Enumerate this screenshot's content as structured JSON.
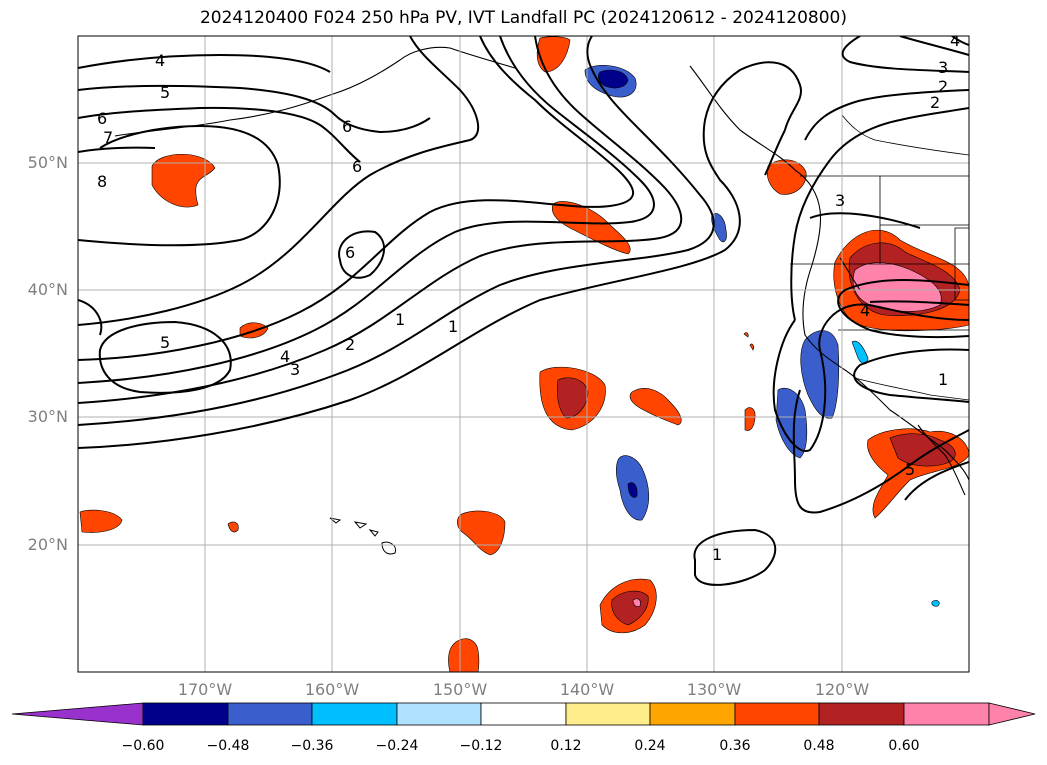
{
  "title": "2024120400 F024 250 hPa PV, IVT Landfall PC (2024120612 - 2024120800)",
  "map": {
    "projection": "lat-lon",
    "lon_range": [
      -180,
      -110
    ],
    "lat_range": [
      10,
      60
    ],
    "lat_ticks": [
      "50°N",
      "40°N",
      "30°N",
      "20°N"
    ],
    "lon_ticks": [
      "170°W",
      "160°W",
      "150°W",
      "140°W",
      "130°W",
      "120°W"
    ],
    "grid": true,
    "contour_variable": "250 hPa PV",
    "contour_labels": [
      "4",
      "5",
      "6",
      "7",
      "8",
      "6",
      "6",
      "6",
      "5",
      "4",
      "3",
      "2",
      "1",
      "1",
      "1",
      "3",
      "4",
      "1",
      "5",
      "4",
      "3",
      "2"
    ],
    "shaded_variable": "IVT Landfall PC"
  },
  "colorbar": {
    "ticks": [
      "−0.60",
      "−0.48",
      "−0.36",
      "−0.24",
      "−0.12",
      "0.12",
      "0.24",
      "0.36",
      "0.48",
      "0.60"
    ],
    "colors": [
      "#9932cc",
      "#00008b",
      "#3a5fcd",
      "#00bfff",
      "#b0e2ff",
      "#ffffff",
      "#ffec8b",
      "#ffa500",
      "#ff4500",
      "#b22222",
      "#ff82ab"
    ],
    "extend": "both"
  }
}
